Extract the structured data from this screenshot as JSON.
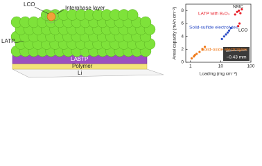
{
  "diagram": {
    "labels": {
      "lco": "LCO",
      "interphase": "Interphase layer",
      "latp": "LATP",
      "labtp": "LABTP",
      "polymer": "Polymer",
      "li": "Li"
    }
  },
  "chart_data": {
    "type": "scatter",
    "xlabel": "Loading (mg cm⁻²)",
    "ylabel": "Areal capacity (mAh cm⁻²)",
    "xscale": "log",
    "xlim": [
      0.7,
      100
    ],
    "xticks": [
      1,
      10,
      100
    ],
    "ylim": [
      0,
      9
    ],
    "yticks": [
      0,
      2,
      4,
      6,
      8
    ],
    "series": [
      {
        "name": "LATP with B₂O₃",
        "color": "#e8202a",
        "x": [
          30,
          35,
          40,
          45,
          50,
          38,
          42
        ],
        "values": [
          7.4,
          7.8,
          8.0,
          7.6,
          8.2,
          5.6,
          6.0
        ]
      },
      {
        "name": "Solid-sulfide electrolytes",
        "color": "#2e4fc7",
        "x": [
          11,
          13,
          15,
          17,
          19,
          22
        ],
        "values": [
          3.6,
          4.0,
          4.3,
          4.6,
          4.9,
          5.3
        ]
      },
      {
        "name": "Solid-oxide electrolytes",
        "color": "#f07a1a",
        "x": [
          1.1,
          1.3,
          1.6,
          2.0,
          2.5,
          3.0,
          1.4
        ],
        "values": [
          0.6,
          0.9,
          1.3,
          1.6,
          2.0,
          2.4,
          1.1
        ]
      }
    ],
    "annotations": [
      "NMC",
      "LCO"
    ],
    "inset_label": "~0.43 mm"
  }
}
